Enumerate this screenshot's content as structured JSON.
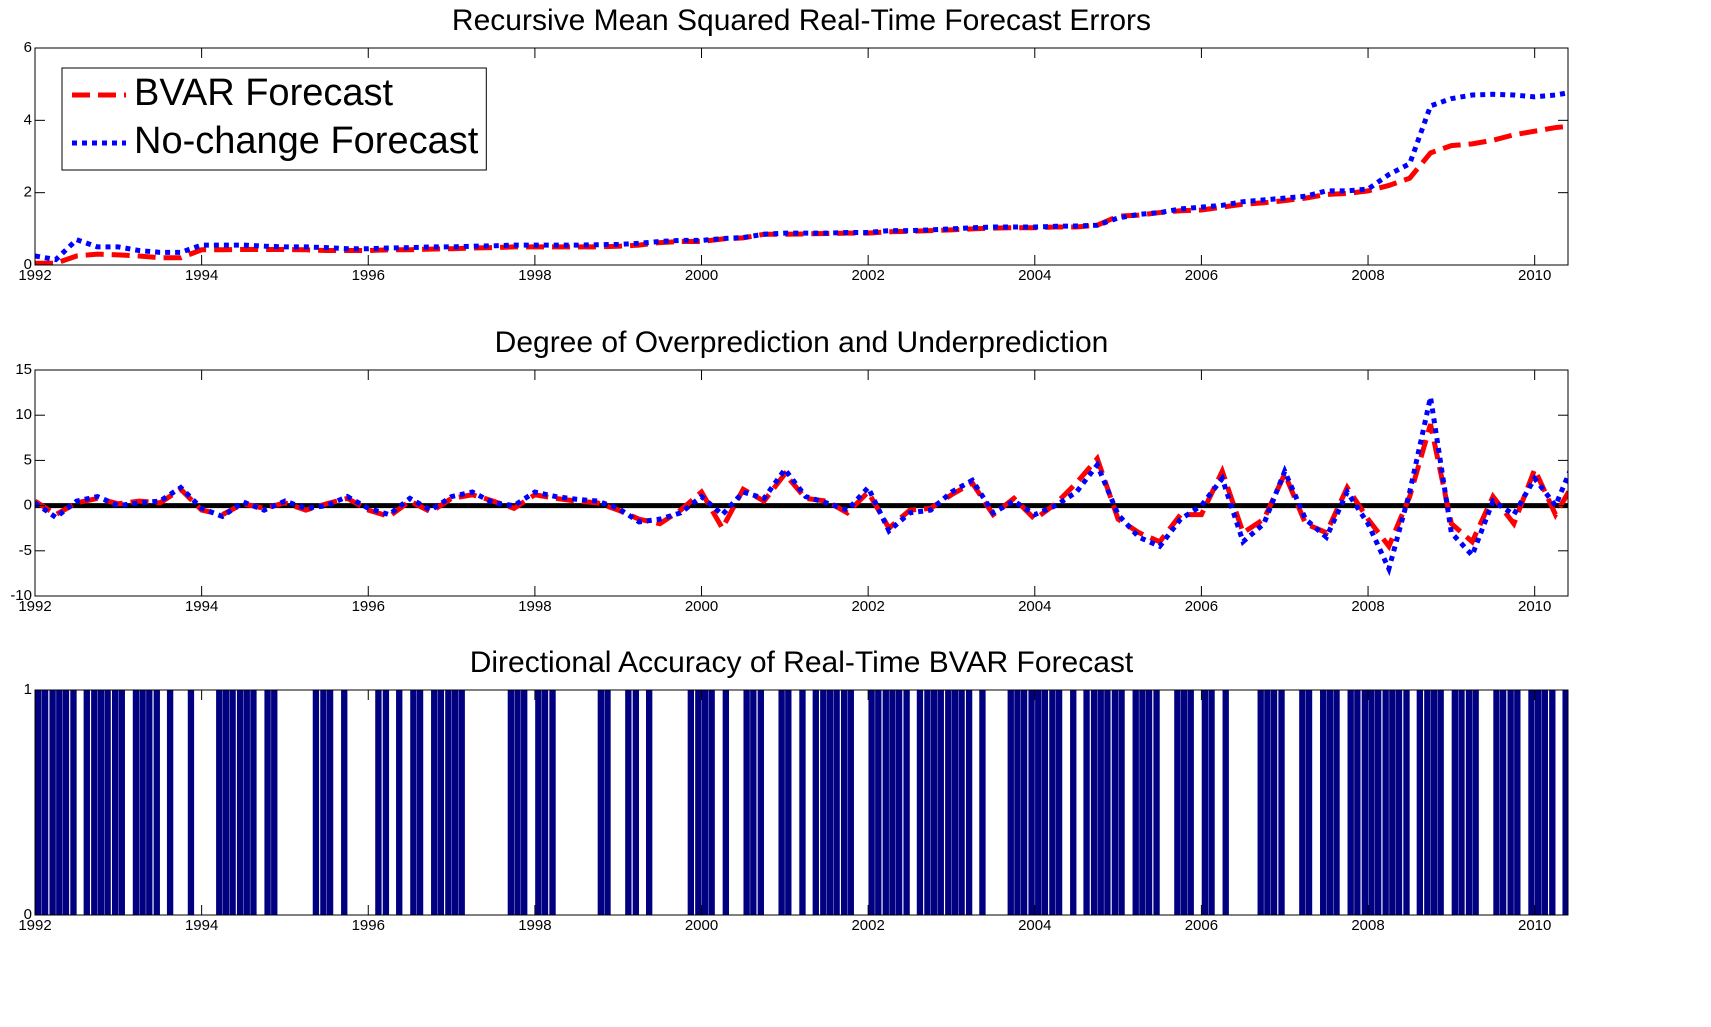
{
  "chart_data": [
    {
      "type": "line",
      "title": "Recursive Mean Squared Real-Time Forecast Errors",
      "legend": "upper left",
      "xlim": [
        1992,
        2010.4
      ],
      "xticks": [
        1992,
        1994,
        1996,
        1998,
        2000,
        2002,
        2004,
        2006,
        2008,
        2010
      ],
      "ylim": [
        0,
        6
      ],
      "yticks": [
        0,
        2,
        4,
        6
      ],
      "x": [
        1992,
        1992.25,
        1992.5,
        1992.75,
        1993,
        1993.25,
        1993.5,
        1993.75,
        1994,
        1994.25,
        1994.5,
        1994.75,
        1995,
        1995.25,
        1995.5,
        1995.75,
        1996,
        1996.25,
        1996.5,
        1996.75,
        1997,
        1997.25,
        1997.5,
        1997.75,
        1998,
        1998.25,
        1998.5,
        1998.75,
        1999,
        1999.25,
        1999.5,
        1999.75,
        2000,
        2000.25,
        2000.5,
        2000.75,
        2001,
        2001.25,
        2001.5,
        2001.75,
        2002,
        2002.25,
        2002.5,
        2002.75,
        2003,
        2003.25,
        2003.5,
        2003.75,
        2004,
        2004.25,
        2004.5,
        2004.75,
        2005,
        2005.25,
        2005.5,
        2005.75,
        2006,
        2006.25,
        2006.5,
        2006.75,
        2007,
        2007.25,
        2007.5,
        2007.75,
        2008,
        2008.25,
        2008.5,
        2008.75,
        2009,
        2009.25,
        2009.5,
        2009.75,
        2010,
        2010.25,
        2010.5
      ],
      "series": [
        {
          "name": "BVAR Forecast",
          "color": "#ff0000",
          "linestyle": "dashed",
          "values": [
            0.05,
            0.05,
            0.25,
            0.3,
            0.28,
            0.25,
            0.2,
            0.2,
            0.42,
            0.42,
            0.43,
            0.43,
            0.43,
            0.42,
            0.4,
            0.4,
            0.4,
            0.42,
            0.42,
            0.44,
            0.45,
            0.47,
            0.48,
            0.5,
            0.5,
            0.5,
            0.5,
            0.5,
            0.52,
            0.55,
            0.62,
            0.65,
            0.65,
            0.72,
            0.75,
            0.85,
            0.85,
            0.86,
            0.87,
            0.88,
            0.88,
            0.92,
            0.93,
            0.95,
            0.97,
            1.0,
            1.02,
            1.03,
            1.03,
            1.05,
            1.05,
            1.1,
            1.35,
            1.38,
            1.45,
            1.5,
            1.52,
            1.6,
            1.68,
            1.72,
            1.78,
            1.85,
            1.95,
            1.98,
            2.05,
            2.2,
            2.4,
            3.1,
            3.3,
            3.35,
            3.45,
            3.6,
            3.7,
            3.8,
            3.85
          ]
        },
        {
          "name": "No-change Forecast",
          "color": "#0000ff",
          "linestyle": "dotted",
          "values": [
            0.25,
            0.15,
            0.7,
            0.5,
            0.5,
            0.4,
            0.35,
            0.35,
            0.55,
            0.55,
            0.55,
            0.52,
            0.5,
            0.5,
            0.48,
            0.45,
            0.45,
            0.47,
            0.48,
            0.5,
            0.5,
            0.52,
            0.53,
            0.55,
            0.55,
            0.55,
            0.55,
            0.56,
            0.57,
            0.6,
            0.65,
            0.68,
            0.68,
            0.73,
            0.76,
            0.85,
            0.88,
            0.88,
            0.88,
            0.9,
            0.9,
            0.95,
            0.95,
            0.97,
            1.0,
            1.03,
            1.05,
            1.05,
            1.05,
            1.07,
            1.08,
            1.1,
            1.3,
            1.4,
            1.45,
            1.55,
            1.6,
            1.65,
            1.75,
            1.8,
            1.85,
            1.9,
            2.05,
            2.05,
            2.1,
            2.5,
            2.8,
            4.4,
            4.6,
            4.7,
            4.72,
            4.7,
            4.65,
            4.7,
            4.8
          ]
        }
      ]
    },
    {
      "type": "line",
      "title": "Degree of Overprediction and Underprediction",
      "reference_line": 0,
      "reference_color": "#000000",
      "xlim": [
        1992,
        2010.4
      ],
      "xticks": [
        1992,
        1994,
        1996,
        1998,
        2000,
        2002,
        2004,
        2006,
        2008,
        2010
      ],
      "ylim": [
        -10,
        15
      ],
      "yticks": [
        -10,
        -5,
        0,
        5,
        10,
        15
      ],
      "x": [
        1992,
        1992.25,
        1992.5,
        1992.75,
        1993,
        1993.25,
        1993.5,
        1993.75,
        1994,
        1994.25,
        1994.5,
        1994.75,
        1995,
        1995.25,
        1995.5,
        1995.75,
        1996,
        1996.25,
        1996.5,
        1996.75,
        1997,
        1997.25,
        1997.5,
        1997.75,
        1998,
        1998.25,
        1998.5,
        1998.75,
        1999,
        1999.25,
        1999.5,
        1999.75,
        2000,
        2000.25,
        2000.5,
        2000.75,
        2001,
        2001.25,
        2001.5,
        2001.75,
        2002,
        2002.25,
        2002.5,
        2002.75,
        2003,
        2003.25,
        2003.5,
        2003.75,
        2004,
        2004.25,
        2004.5,
        2004.75,
        2005,
        2005.25,
        2005.5,
        2005.75,
        2006,
        2006.25,
        2006.5,
        2006.75,
        2007,
        2007.25,
        2007.5,
        2007.75,
        2008,
        2008.25,
        2008.5,
        2008.75,
        2009,
        2009.25,
        2009.5,
        2009.75,
        2010,
        2010.25,
        2010.5
      ],
      "series": [
        {
          "name": "BVAR Forecast",
          "color": "#ff0000",
          "linestyle": "dashed",
          "values": [
            0.5,
            -1,
            0.3,
            0.8,
            0.2,
            0.5,
            0.3,
            1.8,
            -0.5,
            -1,
            0.2,
            -0.3,
            0.3,
            -0.5,
            0.2,
            0.8,
            -0.5,
            -1.2,
            0.5,
            -0.7,
            0.8,
            1.2,
            0.5,
            -0.3,
            1.2,
            0.8,
            0.5,
            0.3,
            -0.5,
            -1.5,
            -2,
            -0.5,
            1.5,
            -2.5,
            1.8,
            0.5,
            3.5,
            0.8,
            0.5,
            -0.8,
            1.5,
            -2.5,
            -0.5,
            -0.3,
            1.2,
            2.5,
            -1,
            0.8,
            -1.5,
            0.2,
            2.5,
            5.2,
            -1.5,
            -3,
            -4,
            -1,
            -1,
            3.8,
            -3,
            -1.5,
            3.5,
            -2,
            -3,
            2,
            -1.5,
            -4.5,
            1,
            9,
            -2,
            -4,
            1,
            -2,
            4,
            -1,
            3
          ]
        },
        {
          "name": "No-change Forecast",
          "color": "#0000ff",
          "linestyle": "dotted",
          "values": [
            0.3,
            -1.3,
            0.5,
            1,
            0,
            0.3,
            0.5,
            2,
            -0.3,
            -1.2,
            0.4,
            -0.5,
            0.5,
            -0.3,
            0,
            1,
            -0.3,
            -1,
            0.8,
            -0.5,
            1,
            1.5,
            0.3,
            0,
            1.5,
            1,
            0.7,
            0.5,
            -0.3,
            -1.8,
            -1.5,
            -0.8,
            1,
            -1,
            1.5,
            0.8,
            4,
            1,
            0.3,
            -0.5,
            2,
            -2.8,
            -0.8,
            -0.5,
            1.5,
            2.8,
            -0.8,
            0.5,
            -1,
            0,
            1.5,
            4.5,
            -1,
            -3.5,
            -4.5,
            -1.5,
            0,
            3,
            -4,
            -2,
            3.8,
            -1.5,
            -3.5,
            1.5,
            -2,
            -7,
            1.5,
            12,
            -3,
            -5.5,
            0.5,
            -1,
            3,
            0,
            5.5
          ]
        }
      ]
    },
    {
      "type": "bar",
      "title": "Directional Accuracy of Real-Time BVAR Forecast",
      "color": "#000080",
      "xlim": [
        1992,
        2010.4
      ],
      "xticks": [
        1992,
        1994,
        1996,
        1998,
        2000,
        2002,
        2004,
        2006,
        2008,
        2010
      ],
      "ylim": [
        0,
        1
      ],
      "yticks": [
        0,
        1
      ],
      "x": [
        1992,
        1992.08,
        1992.17,
        1992.25,
        1992.33,
        1992.42,
        1992.5,
        1992.58,
        1992.67,
        1992.75,
        1992.83,
        1992.92,
        1993,
        1993.08,
        1993.17,
        1993.25,
        1993.33,
        1993.42,
        1993.5,
        1993.58,
        1993.67,
        1993.75,
        1993.83,
        1993.92,
        1994,
        1994.08,
        1994.17,
        1994.25,
        1994.33,
        1994.42,
        1994.5,
        1994.58,
        1994.67,
        1994.75,
        1994.83,
        1994.92,
        1995,
        1995.08,
        1995.17,
        1995.25,
        1995.33,
        1995.42,
        1995.5,
        1995.58,
        1995.67,
        1995.75,
        1995.83,
        1995.92,
        1996,
        1996.08,
        1996.17,
        1996.25,
        1996.33,
        1996.42,
        1996.5,
        1996.58,
        1996.67,
        1996.75,
        1996.83,
        1996.92,
        1997,
        1997.08,
        1997.17,
        1997.25,
        1997.33,
        1997.42,
        1997.5,
        1997.58,
        1997.67,
        1997.75,
        1997.83,
        1997.92,
        1998,
        1998.08,
        1998.17,
        1998.25,
        1998.33,
        1998.42,
        1998.5,
        1998.58,
        1998.67,
        1998.75,
        1998.83,
        1998.92,
        1999,
        1999.08,
        1999.17,
        1999.25,
        1999.33,
        1999.42,
        1999.5,
        1999.58,
        1999.67,
        1999.75,
        1999.83,
        1999.92,
        2000,
        2000.08,
        2000.17,
        2000.25,
        2000.33,
        2000.42,
        2000.5,
        2000.58,
        2000.67,
        2000.75,
        2000.83,
        2000.92,
        2001,
        2001.08,
        2001.17,
        2001.25,
        2001.33,
        2001.42,
        2001.5,
        2001.58,
        2001.67,
        2001.75,
        2001.83,
        2001.92,
        2002,
        2002.08,
        2002.17,
        2002.25,
        2002.33,
        2002.42,
        2002.5,
        2002.58,
        2002.67,
        2002.75,
        2002.83,
        2002.92,
        2003,
        2003.08,
        2003.17,
        2003.25,
        2003.33,
        2003.42,
        2003.5,
        2003.58,
        2003.67,
        2003.75,
        2003.83,
        2003.92,
        2004,
        2004.08,
        2004.17,
        2004.25,
        2004.33,
        2004.42,
        2004.5,
        2004.58,
        2004.67,
        2004.75,
        2004.83,
        2004.92,
        2005,
        2005.08,
        2005.17,
        2005.25,
        2005.33,
        2005.42,
        2005.5,
        2005.58,
        2005.67,
        2005.75,
        2005.83,
        2005.92,
        2006,
        2006.08,
        2006.17,
        2006.25,
        2006.33,
        2006.42,
        2006.5,
        2006.58,
        2006.67,
        2006.75,
        2006.83,
        2006.92,
        2007,
        2007.08,
        2007.17,
        2007.25,
        2007.33,
        2007.42,
        2007.5,
        2007.58,
        2007.67,
        2007.75,
        2007.83,
        2007.92,
        2008,
        2008.08,
        2008.17,
        2008.25,
        2008.33,
        2008.42,
        2008.5,
        2008.58,
        2008.67,
        2008.75,
        2008.83,
        2008.92,
        2009,
        2009.08,
        2009.17,
        2009.25,
        2009.33,
        2009.42,
        2009.5,
        2009.58,
        2009.67,
        2009.75,
        2009.83,
        2009.92,
        2010,
        2010.08,
        2010.17,
        2010.25,
        2010.33,
        2010.42
      ],
      "values": [
        1,
        1,
        1,
        1,
        1,
        1,
        0,
        1,
        1,
        1,
        1,
        1,
        1,
        0,
        1,
        1,
        1,
        1,
        0,
        1,
        0,
        0,
        1,
        0,
        0,
        0,
        1,
        1,
        1,
        1,
        1,
        1,
        0,
        1,
        1,
        0,
        0,
        0,
        0,
        0,
        1,
        1,
        1,
        0,
        1,
        0,
        0,
        0,
        0,
        1,
        1,
        0,
        1,
        0,
        1,
        1,
        0,
        1,
        1,
        1,
        1,
        1,
        0,
        0,
        0,
        0,
        0,
        0,
        1,
        1,
        1,
        0,
        1,
        1,
        1,
        0,
        0,
        0,
        0,
        0,
        0,
        1,
        1,
        0,
        0,
        1,
        1,
        0,
        1,
        0,
        0,
        0,
        0,
        0,
        1,
        1,
        1,
        1,
        0,
        1,
        0,
        0,
        1,
        1,
        1,
        0,
        0,
        1,
        1,
        0,
        1,
        0,
        1,
        1,
        1,
        1,
        1,
        1,
        0,
        0,
        1,
        1,
        1,
        1,
        1,
        1,
        0,
        1,
        1,
        1,
        1,
        1,
        1,
        1,
        1,
        0,
        1,
        0,
        0,
        0,
        1,
        1,
        1,
        1,
        1,
        1,
        1,
        1,
        0,
        1,
        0,
        1,
        1,
        1,
        1,
        1,
        1,
        0,
        1,
        1,
        1,
        1,
        0,
        0,
        1,
        1,
        1,
        0,
        1,
        1,
        0,
        1,
        0,
        0,
        0,
        0,
        1,
        1,
        1,
        1,
        0,
        0,
        1,
        1,
        0,
        1,
        1,
        1,
        0,
        1,
        1,
        1,
        1,
        1,
        1,
        1,
        1,
        1,
        0,
        1,
        1,
        1,
        1,
        0,
        1,
        1,
        1,
        1,
        0,
        0,
        1,
        1,
        1,
        1,
        0,
        1,
        1,
        1,
        1,
        0,
        1,
        1
      ]
    }
  ]
}
